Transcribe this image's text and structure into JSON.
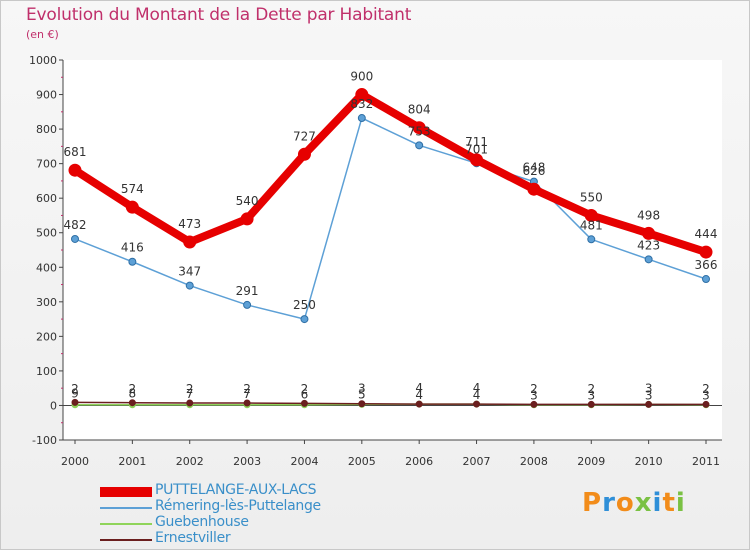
{
  "header": {
    "title": "Evolution du Montant de la Dette par Habitant",
    "subtitle": "(en €)"
  },
  "colors": {
    "title": "#c0306b",
    "axis_text": "#333333",
    "puttelange": "#e60000",
    "remering": "#5da0d6",
    "guebenhouse": "#8fd45a",
    "ernestviller": "#6b1f1f",
    "legend_text": "#3a8fc9"
  },
  "legend": [
    {
      "label": "PUTTELANGE-AUX-LACS",
      "color": "#e60000"
    },
    {
      "label": "Rémering-lès-Puttelange",
      "color": "#5da0d6"
    },
    {
      "label": "Guebenhouse",
      "color": "#8fd45a"
    },
    {
      "label": "Ernestviller",
      "color": "#6b1f1f"
    }
  ],
  "logo": {
    "text": "Proxiti",
    "letters": [
      "P",
      "r",
      "o",
      "x",
      "i",
      "t",
      "i"
    ],
    "colors": [
      "#f28c1a",
      "#2f8fd8",
      "#f28c1a",
      "#7ac143",
      "#2f8fd8",
      "#f28c1a",
      "#7ac143"
    ]
  },
  "chart_data": {
    "type": "line",
    "title": "Evolution du Montant de la Dette par Habitant",
    "subtitle": "(en €)",
    "x": [
      "2000",
      "2001",
      "2002",
      "2003",
      "2004",
      "2005",
      "2006",
      "2007",
      "2008",
      "2009",
      "2010",
      "2011"
    ],
    "yticks": [
      "-100",
      "0",
      "100",
      "200",
      "300",
      "400",
      "500",
      "600",
      "700",
      "800",
      "900",
      "1000"
    ],
    "ylim": [
      -100,
      1000
    ],
    "grid": false,
    "legend_position": "bottom-left",
    "series": [
      {
        "name": "PUTTELANGE-AUX-LACS",
        "color": "#e60000",
        "values": [
          681,
          574,
          473,
          540,
          727,
          900,
          804,
          711,
          626,
          550,
          498,
          444
        ],
        "labels": [
          "681",
          "574",
          "473",
          "540",
          "727",
          "900",
          "804",
          "711",
          "626",
          "550",
          "498",
          "444"
        ]
      },
      {
        "name": "Rémering-lès-Puttelange",
        "color": "#5da0d6",
        "values": [
          482,
          416,
          347,
          291,
          250,
          832,
          753,
          701,
          648,
          481,
          423,
          366
        ],
        "labels": [
          "482",
          "416",
          "347",
          "291",
          "250",
          "832",
          "753",
          "701",
          "648",
          "481",
          "423",
          "366"
        ]
      },
      {
        "name": "Guebenhouse",
        "color": "#8fd45a",
        "values": [
          2,
          2,
          2,
          2,
          2,
          3,
          4,
          4,
          2,
          2,
          3,
          2
        ],
        "labels": [
          "2",
          "2",
          "2",
          "2",
          "2",
          "3",
          "4",
          "4",
          "2",
          "2",
          "3",
          "2"
        ]
      },
      {
        "name": "Ernestviller",
        "color": "#6b1f1f",
        "values": [
          9,
          8,
          7,
          7,
          6,
          5,
          4,
          4,
          3,
          3,
          3,
          3
        ],
        "labels": [
          "9",
          "8",
          "7",
          "7",
          "6",
          "5",
          "4",
          "4",
          "3",
          "3",
          "3",
          "3"
        ]
      }
    ]
  }
}
